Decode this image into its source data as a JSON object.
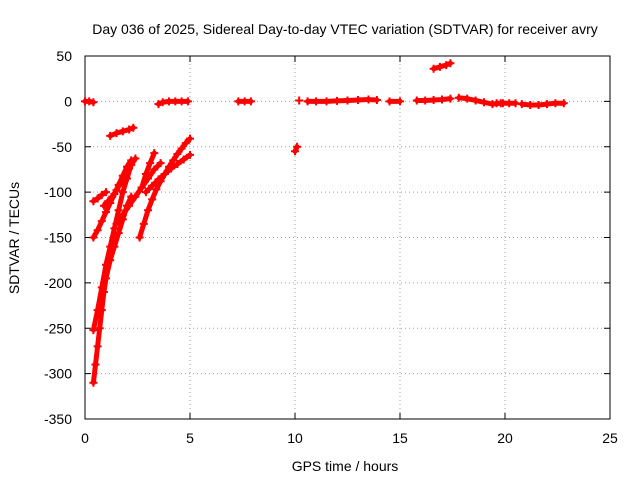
{
  "chart_data": {
    "type": "scatter",
    "title": "Day 036 of 2025, Sidereal Day-to-day VTEC variation (SDTVAR) for receiver avry",
    "xlabel": "GPS time / hours",
    "ylabel": "SDTVAR / TECUs",
    "xlim": [
      0,
      25
    ],
    "ylim": [
      -350,
      50
    ],
    "xticks": [
      0,
      5,
      10,
      15,
      20,
      25
    ],
    "yticks": [
      50,
      0,
      -50,
      -100,
      -150,
      -200,
      -250,
      -300,
      -350
    ],
    "grid": true,
    "marker_color": "#ff0000",
    "series": [
      {
        "name": "s1",
        "points": [
          [
            0.0,
            0
          ],
          [
            0.2,
            0
          ],
          [
            0.4,
            -1
          ]
        ]
      },
      {
        "name": "s2",
        "points": [
          [
            0.4,
            -310
          ],
          [
            0.5,
            -290
          ],
          [
            0.6,
            -270
          ],
          [
            0.7,
            -250
          ],
          [
            0.8,
            -230
          ],
          [
            0.9,
            -210
          ],
          [
            1.0,
            -195
          ],
          [
            1.2,
            -175
          ],
          [
            1.4,
            -160
          ],
          [
            1.6,
            -145
          ],
          [
            1.8,
            -130
          ],
          [
            2.0,
            -115
          ],
          [
            2.2,
            -105
          ]
        ]
      },
      {
        "name": "s3",
        "points": [
          [
            0.4,
            -252
          ],
          [
            0.6,
            -230
          ],
          [
            0.8,
            -205
          ],
          [
            1.0,
            -180
          ],
          [
            1.2,
            -160
          ],
          [
            1.4,
            -140
          ],
          [
            1.6,
            -120
          ],
          [
            1.8,
            -100
          ],
          [
            2.0,
            -85
          ],
          [
            2.2,
            -70
          ],
          [
            2.4,
            -63
          ]
        ]
      },
      {
        "name": "s4",
        "points": [
          [
            0.4,
            -150
          ],
          [
            0.6,
            -142
          ],
          [
            0.8,
            -132
          ],
          [
            1.0,
            -122
          ],
          [
            1.2,
            -112
          ],
          [
            1.4,
            -102
          ],
          [
            1.6,
            -92
          ],
          [
            1.8,
            -82
          ],
          [
            2.0,
            -72
          ],
          [
            2.2,
            -65
          ]
        ]
      },
      {
        "name": "s5",
        "points": [
          [
            0.4,
            -110
          ],
          [
            0.6,
            -107
          ],
          [
            0.8,
            -103
          ],
          [
            1.0,
            -100
          ]
        ]
      },
      {
        "name": "s6",
        "points": [
          [
            0.9,
            -115
          ],
          [
            1.1,
            -110
          ],
          [
            1.3,
            -105
          ],
          [
            1.5,
            -98
          ],
          [
            1.7,
            -90
          ],
          [
            1.9,
            -82
          ],
          [
            2.1,
            -74
          ]
        ]
      },
      {
        "name": "s7",
        "points": [
          [
            1.2,
            -38
          ],
          [
            1.5,
            -35
          ],
          [
            1.8,
            -33
          ],
          [
            2.1,
            -31
          ],
          [
            2.3,
            -29
          ]
        ]
      },
      {
        "name": "s8",
        "points": [
          [
            1.5,
            -135
          ],
          [
            1.8,
            -125
          ],
          [
            2.1,
            -115
          ],
          [
            2.4,
            -105
          ],
          [
            2.7,
            -95
          ],
          [
            3.0,
            -85
          ],
          [
            3.3,
            -75
          ],
          [
            3.6,
            -68
          ]
        ]
      },
      {
        "name": "s9",
        "points": [
          [
            2.6,
            -150
          ],
          [
            2.8,
            -135
          ],
          [
            3.0,
            -120
          ],
          [
            3.2,
            -108
          ],
          [
            3.4,
            -97
          ],
          [
            3.6,
            -88
          ],
          [
            3.8,
            -80
          ],
          [
            4.0,
            -72
          ],
          [
            4.2,
            -65
          ],
          [
            4.4,
            -58
          ],
          [
            4.6,
            -52
          ],
          [
            4.8,
            -46
          ],
          [
            5.0,
            -41
          ]
        ]
      },
      {
        "name": "s10",
        "points": [
          [
            2.7,
            -95
          ],
          [
            2.9,
            -80
          ],
          [
            3.1,
            -68
          ],
          [
            3.3,
            -57
          ]
        ]
      },
      {
        "name": "s11",
        "points": [
          [
            2.9,
            -100
          ],
          [
            3.2,
            -93
          ],
          [
            3.5,
            -86
          ],
          [
            3.8,
            -80
          ],
          [
            4.1,
            -74
          ],
          [
            4.4,
            -69
          ],
          [
            4.7,
            -64
          ],
          [
            5.0,
            -59
          ]
        ]
      },
      {
        "name": "s12",
        "points": [
          [
            3.5,
            -3
          ],
          [
            3.7,
            -1
          ],
          [
            4.0,
            0
          ],
          [
            4.3,
            0
          ],
          [
            4.6,
            0
          ],
          [
            4.9,
            0
          ]
        ]
      },
      {
        "name": "s13",
        "points": [
          [
            7.3,
            0
          ],
          [
            7.6,
            0
          ],
          [
            7.9,
            0
          ]
        ]
      },
      {
        "name": "s14",
        "points": [
          [
            10.0,
            -55
          ],
          [
            10.1,
            -50
          ]
        ]
      },
      {
        "name": "s15",
        "points": [
          [
            10.2,
            1
          ]
        ]
      },
      {
        "name": "s16",
        "points": [
          [
            10.6,
            0
          ],
          [
            11.0,
            0
          ],
          [
            11.5,
            0
          ],
          [
            12.0,
            0.5
          ],
          [
            12.5,
            1
          ],
          [
            13.0,
            1.5
          ],
          [
            13.5,
            2
          ],
          [
            13.9,
            1.5
          ]
        ]
      },
      {
        "name": "s17",
        "points": [
          [
            14.5,
            0
          ],
          [
            15.0,
            0
          ]
        ]
      },
      {
        "name": "s18",
        "points": [
          [
            15.8,
            1
          ],
          [
            16.2,
            1
          ],
          [
            16.6,
            1.5
          ],
          [
            17.0,
            2
          ],
          [
            17.4,
            3
          ]
        ]
      },
      {
        "name": "s19",
        "points": [
          [
            16.6,
            36
          ],
          [
            16.9,
            38
          ],
          [
            17.2,
            40
          ],
          [
            17.4,
            42
          ]
        ]
      },
      {
        "name": "s20",
        "points": [
          [
            17.8,
            4
          ],
          [
            18.2,
            3
          ],
          [
            18.6,
            1
          ],
          [
            19.0,
            -1
          ],
          [
            19.4,
            -3
          ],
          [
            19.8,
            -2
          ]
        ]
      },
      {
        "name": "s21",
        "points": [
          [
            19.6,
            -2
          ],
          [
            19.9,
            -2
          ],
          [
            20.2,
            -2
          ],
          [
            20.5,
            -2
          ]
        ]
      },
      {
        "name": "s22",
        "points": [
          [
            20.8,
            -3
          ],
          [
            21.2,
            -4
          ],
          [
            21.6,
            -4
          ],
          [
            22.0,
            -3
          ],
          [
            22.4,
            -2
          ],
          [
            22.8,
            -2
          ]
        ]
      }
    ]
  }
}
